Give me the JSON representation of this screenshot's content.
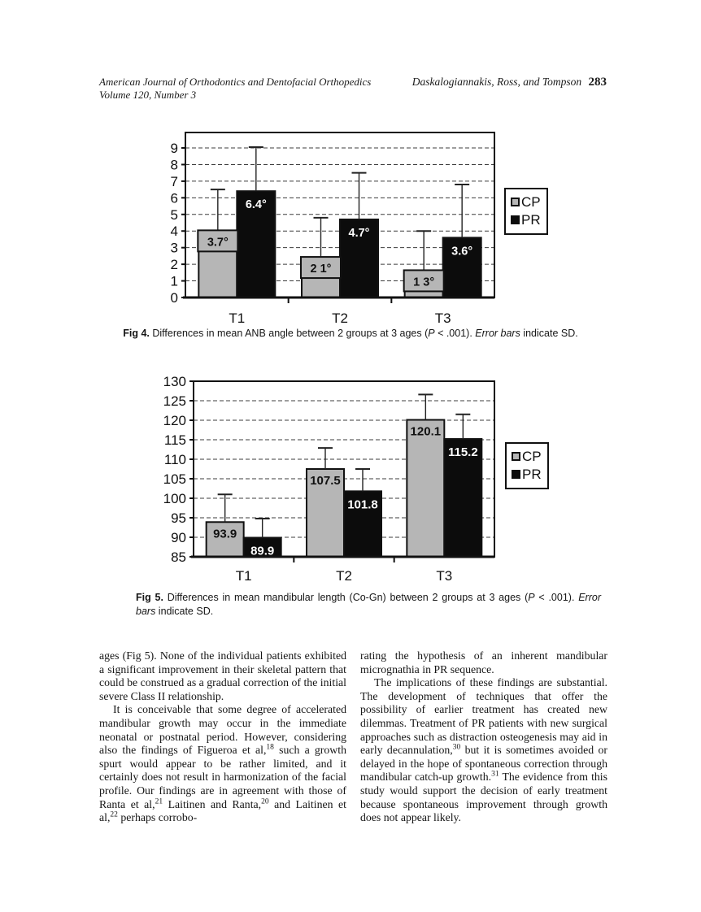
{
  "page": {
    "header": {
      "left_line1": "American Journal of Orthodontics and Dentofacial Orthopedics",
      "left_line2": "Volume 120, Number 3",
      "right_authors": "Daskalogiannakis, Ross, and Tompson",
      "right_page": "283"
    },
    "fig4_caption": [
      {
        "t": "Fig 4.",
        "b": 1
      },
      {
        "t": " Differences in mean ANB angle between 2 groups at 3 ages ("
      },
      {
        "t": "P",
        "i": 1
      },
      {
        "t": " < .001). "
      },
      {
        "t": "Error bars",
        "i": 1
      },
      {
        "t": " indicate SD."
      }
    ],
    "fig5_caption": [
      {
        "t": "Fig 5.",
        "b": 1
      },
      {
        "t": " Differences in mean mandibular length (Co-Gn) between 2 groups at 3 ages ("
      },
      {
        "t": "P",
        "i": 1
      },
      {
        "t": " < .001). "
      },
      {
        "t": "Error bars",
        "i": 1
      },
      {
        "t": " indicate SD."
      }
    ],
    "columns": {
      "left": [
        [
          {
            "t": "ages (Fig 5). None of the individual patients exhibited a significant improvement in their skeletal pattern that could be construed as a gradual correction of the initial severe Class II relationship."
          }
        ],
        [
          {
            "t": "It is conceivable that some degree of accelerated mandibular growth may occur in the immediate neonatal or postnatal period. However, considering also the findings of Figueroa et al,"
          },
          {
            "t": "18",
            "sup": 1
          },
          {
            "t": " such a growth spurt would appear to be rather limited, and it certainly does not result in harmonization of the facial profile. Our findings are in agreement with those of Ranta et al,"
          },
          {
            "t": "21",
            "sup": 1
          },
          {
            "t": " Laitinen and Ranta,"
          },
          {
            "t": "20",
            "sup": 1
          },
          {
            "t": " and Laitinen et al,"
          },
          {
            "t": "22",
            "sup": 1
          },
          {
            "t": " perhaps corrobo-"
          }
        ]
      ],
      "right": [
        [
          {
            "t": "rating the hypothesis of an inherent mandibular micrognathia in PR sequence."
          }
        ],
        [
          {
            "t": "The implications of these findings are substantial. The development of techniques that offer the possibility of earlier treatment has created new dilemmas. Treatment of PR patients with new surgical approaches such as distraction osteogenesis may aid in early decannulation,"
          },
          {
            "t": "30",
            "sup": 1
          },
          {
            "t": " but it is sometimes avoided or delayed in the hope of spontaneous correction through mandibular catch-up growth."
          },
          {
            "t": "31",
            "sup": 1
          },
          {
            "t": " The evidence from this study would support the decision of early treatment because spontaneous improvement through growth does not appear likely."
          }
        ]
      ]
    }
  },
  "chart_data": [
    {
      "id": "fig4",
      "type": "bar",
      "title": "Differences in mean ANB angle between 2 groups at 3 ages",
      "categories": [
        "T1",
        "T2",
        "T3"
      ],
      "series": [
        {
          "name": "CP",
          "color": "#b6b6b6",
          "values": [
            3.7,
            2.1,
            1.3
          ],
          "labels": [
            "3.7°",
            "2 1°",
            "1 3°"
          ],
          "error_tops": [
            6.5,
            4.8,
            4.0
          ]
        },
        {
          "name": "PR",
          "color": "#0c0c0c",
          "values": [
            6.4,
            4.7,
            3.6
          ],
          "labels": [
            "6.4°",
            "4.7°",
            "3.6°"
          ],
          "error_tops": [
            9.05,
            7.5,
            6.8
          ]
        }
      ],
      "ylim": [
        0,
        9.93
      ],
      "yticks": [
        0,
        1,
        2,
        3,
        4,
        5,
        6,
        7,
        8,
        9
      ],
      "grid": "dashed-horizontal",
      "legend": [
        "CP",
        "PR"
      ],
      "legend_position": "right",
      "error_bars": "SD, upward with cap"
    },
    {
      "id": "fig5",
      "type": "bar",
      "title": "Differences in mean mandibular length (Co-Gn) between 2 groups at 3 ages",
      "categories": [
        "T1",
        "T2",
        "T3"
      ],
      "series": [
        {
          "name": "CP",
          "color": "#b6b6b6",
          "values": [
            93.9,
            107.5,
            120.1
          ],
          "labels": [
            "93.9",
            "107.5",
            "120.1"
          ],
          "error_tops": [
            101.0,
            112.9,
            126.6
          ]
        },
        {
          "name": "PR",
          "color": "#0c0c0c",
          "values": [
            89.9,
            101.8,
            115.2
          ],
          "labels": [
            "89.9",
            "101.8",
            "115.2"
          ],
          "error_tops": [
            94.8,
            107.5,
            121.5
          ]
        }
      ],
      "ylim": [
        85,
        130
      ],
      "yticks": [
        85,
        90,
        95,
        100,
        105,
        110,
        115,
        120,
        125,
        130
      ],
      "grid": "dashed-horizontal",
      "legend": [
        "CP",
        "PR"
      ],
      "legend_position": "right",
      "error_bars": "SD, upward with cap"
    }
  ]
}
